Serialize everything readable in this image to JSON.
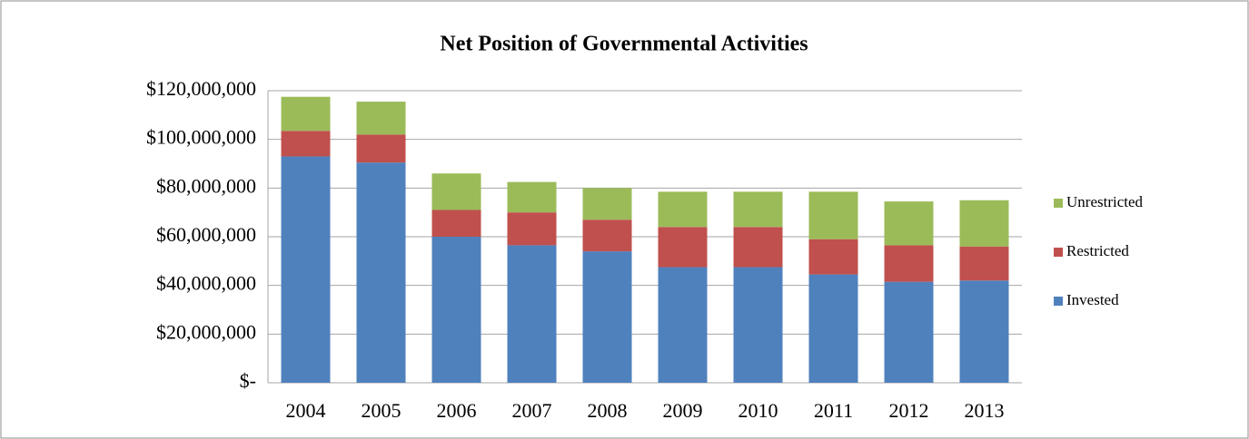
{
  "chart_data": {
    "type": "stacked_bar",
    "title": "Net Position of Governmental Activities",
    "categories": [
      "2004",
      "2005",
      "2006",
      "2007",
      "2008",
      "2009",
      "2010",
      "2011",
      "2012",
      "2013"
    ],
    "series": [
      {
        "name": "Invested",
        "color": "#4f81bd",
        "values": [
          93000000,
          90500000,
          60000000,
          56500000,
          54000000,
          47500000,
          47500000,
          44500000,
          41500000,
          42000000
        ]
      },
      {
        "name": "Restricted",
        "color": "#c0504d",
        "values": [
          10500000,
          11500000,
          11000000,
          13500000,
          13000000,
          16500000,
          16500000,
          14500000,
          15000000,
          14000000
        ]
      },
      {
        "name": "Unrestricted",
        "color": "#9bbb59",
        "values": [
          14000000,
          13500000,
          15000000,
          12500000,
          13000000,
          14500000,
          14500000,
          19500000,
          18000000,
          19000000
        ]
      }
    ],
    "ylim": [
      0,
      120000000
    ],
    "yticks": [
      {
        "value": 0,
        "label": "$-"
      },
      {
        "value": 20000000,
        "label": "$20,000,000"
      },
      {
        "value": 40000000,
        "label": "$40,000,000"
      },
      {
        "value": 60000000,
        "label": "$60,000,000"
      },
      {
        "value": 80000000,
        "label": "$80,000,000"
      },
      {
        "value": 100000000,
        "label": "$100,000,000"
      },
      {
        "value": 120000000,
        "label": "$120,000,000"
      }
    ],
    "grid": true,
    "legend": "right"
  }
}
